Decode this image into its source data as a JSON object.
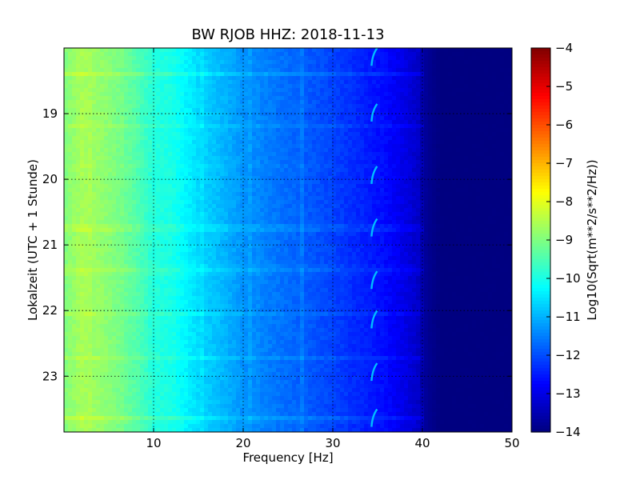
{
  "chart_data": {
    "type": "heatmap",
    "title": "BW RJOB HHZ: 2018-11-13",
    "xlabel": "Frequency [Hz]",
    "ylabel": "Lokalzeit (UTC + 1 Stunde)",
    "xlim": [
      0,
      50
    ],
    "ylim": [
      18.0,
      23.85
    ],
    "y_inverted": true,
    "grid": true,
    "x_ticks": [
      10,
      20,
      30,
      40,
      50
    ],
    "y_ticks": [
      19,
      20,
      21,
      22,
      23
    ],
    "colormap": "jet",
    "colorbar": {
      "label": "Log10(Sqrt(m**2/s**2/Hz))",
      "range": [
        -14,
        -4
      ],
      "ticks": [
        -4,
        -5,
        -6,
        -7,
        -8,
        -9,
        -10,
        -11,
        -12,
        -13,
        -14
      ]
    },
    "frequency_profile": {
      "frequency_hz": [
        0,
        2,
        5,
        8,
        10,
        12,
        15,
        18,
        20,
        25,
        30,
        33,
        36,
        38,
        39.5,
        40.5,
        42,
        45,
        50
      ],
      "level": [
        -9.0,
        -8.6,
        -8.9,
        -9.4,
        -9.9,
        -10.0,
        -10.6,
        -11.0,
        -11.3,
        -11.7,
        -12.1,
        -12.4,
        -12.7,
        -13.0,
        -13.3,
        -13.8,
        -14.0,
        -14.0,
        -14.0
      ]
    },
    "features": {
      "periodic_arc_near_hz": 34.5,
      "arc_times": [
        18.1,
        18.95,
        19.9,
        20.7,
        21.5,
        22.1,
        22.9,
        23.6
      ]
    }
  }
}
